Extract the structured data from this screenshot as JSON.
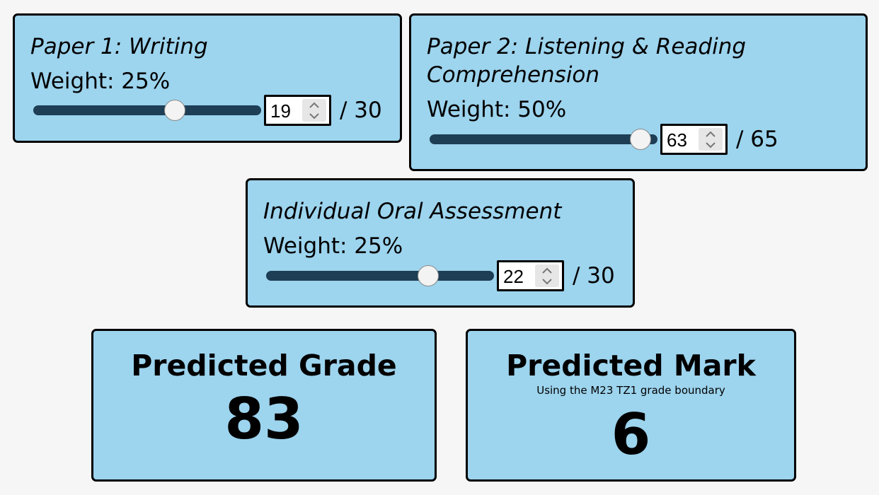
{
  "components": [
    {
      "title": "Paper 1: Writing",
      "weight_label": "Weight: 25%",
      "score": "19",
      "max_label": "/ 30",
      "slider_fraction": 0.633
    },
    {
      "title": "Paper 2: Listening & Reading Comprehension",
      "weight_label": "Weight: 50%",
      "score": "63",
      "max_label": "/ 65",
      "slider_fraction": 0.969
    },
    {
      "title": "Individual Oral Assessment",
      "weight_label": "Weight: 25%",
      "score": "22",
      "max_label": "/ 30",
      "slider_fraction": 0.733
    }
  ],
  "results": {
    "grade_title": "Predicted Grade",
    "grade_value": "83",
    "mark_title": "Predicted Mark",
    "mark_subtitle": "Using the M23 TZ1 grade boundary",
    "mark_value": "6"
  },
  "colors": {
    "card_bg": "#9dd4ee",
    "track": "#1d3e55",
    "page_bg": "#f6f6f6"
  },
  "icons": {
    "spinner": "chevron-up-down-icon",
    "slider_thumb": "slider-thumb-icon"
  }
}
